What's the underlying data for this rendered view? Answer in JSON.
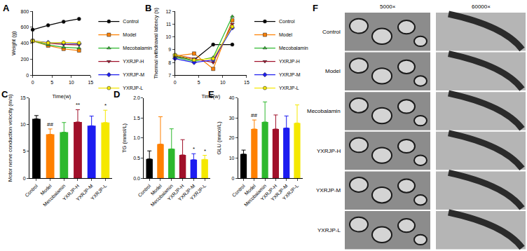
{
  "chart_data": [
    {
      "panel": "A",
      "type": "line",
      "x_label": "Time(w)",
      "y_label": "Weight (g)",
      "x": [
        0,
        4,
        8,
        12
      ],
      "xlim": [
        0,
        15
      ],
      "xticks": [
        0,
        5,
        10,
        15
      ],
      "ylim": [
        0,
        800
      ],
      "yticks": [
        0,
        200,
        400,
        600,
        800
      ],
      "legend": "right",
      "series": [
        {
          "name": "Control",
          "color": "#000000",
          "marker": "circle",
          "values": [
            570,
            625,
            670,
            705
          ]
        },
        {
          "name": "Model",
          "color": "#ff8000",
          "marker": "square",
          "values": [
            430,
            370,
            330,
            310
          ]
        },
        {
          "name": "Mecobalamin",
          "color": "#2db82d",
          "marker": "triangle-up",
          "values": [
            430,
            380,
            350,
            340
          ]
        },
        {
          "name": "YXRJP-H",
          "color": "#a0102a",
          "marker": "triangle-down",
          "values": [
            430,
            400,
            385,
            380
          ]
        },
        {
          "name": "YXRJP-M",
          "color": "#1c1cf0",
          "marker": "diamond",
          "values": [
            430,
            410,
            400,
            395
          ]
        },
        {
          "name": "YXRJP-L",
          "color": "#f5e800",
          "marker": "circle",
          "values": [
            430,
            405,
            410,
            405
          ]
        }
      ]
    },
    {
      "panel": "B",
      "type": "line",
      "x_label": "Time(w)",
      "y_label": "Thermal withdrawal latency (s)",
      "x": [
        0,
        4,
        8,
        12
      ],
      "xlim": [
        0,
        15
      ],
      "xticks": [
        0,
        5,
        10,
        15
      ],
      "ylim": [
        7,
        12
      ],
      "yticks": [
        7,
        8,
        9,
        10,
        11,
        12
      ],
      "legend": "right",
      "series": [
        {
          "name": "Control",
          "color": "#000000",
          "marker": "circle",
          "values": [
            8.5,
            8.2,
            9.4,
            9.4
          ]
        },
        {
          "name": "Model",
          "color": "#ff8000",
          "marker": "square",
          "values": [
            8.5,
            8.7,
            7.5,
            11.3
          ]
        },
        {
          "name": "Mecobalamin",
          "color": "#2db82d",
          "marker": "triangle-up",
          "values": [
            8.4,
            8.1,
            8.4,
            11.6
          ]
        },
        {
          "name": "YXRJP-H",
          "color": "#a0102a",
          "marker": "triangle-down",
          "values": [
            8.6,
            8.3,
            8.0,
            11.0
          ]
        },
        {
          "name": "YXRJP-M",
          "color": "#1c1cf0",
          "marker": "diamond",
          "values": [
            8.3,
            8.0,
            8.2,
            10.7
          ]
        },
        {
          "name": "YXRJP-L",
          "color": "#f5e800",
          "marker": "circle",
          "values": [
            8.6,
            8.2,
            8.3,
            10.8
          ]
        }
      ]
    },
    {
      "panel": "C",
      "type": "bar",
      "y_label": "Motor nerve conduction velocity (m/s)",
      "categories": [
        "Control",
        "Model",
        "Mecobalamin",
        "YXRJP-H",
        "YXRJP-M",
        "YXRJP-L"
      ],
      "values": [
        11.1,
        8.2,
        8.6,
        10.5,
        9.8,
        10.4
      ],
      "errors": [
        0.6,
        1.0,
        1.8,
        2.3,
        1.8,
        2.3
      ],
      "colors": [
        "#000000",
        "#ff8000",
        "#2db82d",
        "#a0102a",
        "#1c1cf0",
        "#f5e800"
      ],
      "ylim": [
        0,
        15
      ],
      "yticks": [
        0,
        5,
        10,
        15
      ],
      "annotations": [
        {
          "category": "Model",
          "text": "##"
        },
        {
          "category": "YXRJP-H",
          "text": "**"
        },
        {
          "category": "YXRJP-L",
          "text": "*"
        }
      ]
    },
    {
      "panel": "D",
      "type": "bar",
      "y_label": "TG (mmol/L)",
      "categories": [
        "Control",
        "Model",
        "Mecobalamin",
        "YXRJP-H",
        "YXRJP-M",
        "YXRJP-L"
      ],
      "values": [
        0.48,
        0.85,
        0.73,
        0.58,
        0.46,
        0.47
      ],
      "errors": [
        0.2,
        0.68,
        0.5,
        0.38,
        0.15,
        0.1
      ],
      "colors": [
        "#000000",
        "#ff8000",
        "#2db82d",
        "#a0102a",
        "#1c1cf0",
        "#f5e800"
      ],
      "ylim": [
        0,
        2
      ],
      "yticks": [
        {
          "value": 0,
          "label": "0.0"
        },
        0.5,
        {
          "value": 1,
          "label": "1.0"
        },
        1.5,
        {
          "value": 2,
          "label": "2.0"
        }
      ],
      "annotations": [
        {
          "category": "YXRJP-M",
          "text": "*"
        },
        {
          "category": "YXRJP-L",
          "text": "*"
        }
      ]
    },
    {
      "panel": "E",
      "type": "bar",
      "y_label": "GLU (mmol/L)",
      "categories": [
        "Control",
        "Model",
        "Mecobalamin",
        "YXRJP-H",
        "YXRJP-M",
        "YXRJP-L"
      ],
      "values": [
        12,
        24.5,
        28,
        24.5,
        25,
        27.5
      ],
      "errors": [
        2,
        4.5,
        10,
        7,
        6,
        9
      ],
      "colors": [
        "#000000",
        "#ff8000",
        "#2db82d",
        "#a0102a",
        "#1c1cf0",
        "#f5e800"
      ],
      "ylim": [
        0,
        40
      ],
      "yticks": [
        0,
        10,
        20,
        30,
        40
      ],
      "annotations": [
        {
          "category": "Model",
          "text": "##"
        }
      ]
    }
  ],
  "image_panel": {
    "panel": "F",
    "columns": [
      "5000×",
      "60000×"
    ],
    "rows": [
      "Control",
      "Model",
      "Mecobalamin",
      "YXRJP-H",
      "YXRJP-M",
      "YXRJP-L"
    ]
  }
}
